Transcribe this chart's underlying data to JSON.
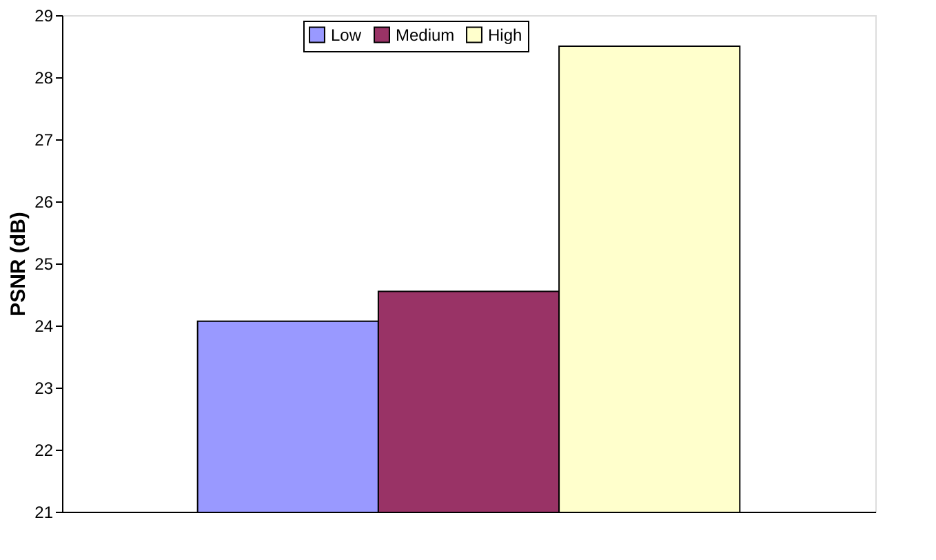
{
  "chart_data": {
    "type": "bar",
    "categories": [
      null
    ],
    "ylabel": "PSNR (dB)",
    "ylim": [
      21,
      29
    ],
    "yticks": [
      21,
      22,
      23,
      24,
      25,
      26,
      27,
      28,
      29
    ],
    "grid": false,
    "legend": "top",
    "series": [
      {
        "name": "Low",
        "color": "#9999ff",
        "values": [
          24.07
        ]
      },
      {
        "name": "Medium",
        "color": "#993366",
        "values": [
          24.55
        ]
      },
      {
        "name": "High",
        "color": "#ffffcc",
        "values": [
          28.5
        ]
      }
    ]
  }
}
